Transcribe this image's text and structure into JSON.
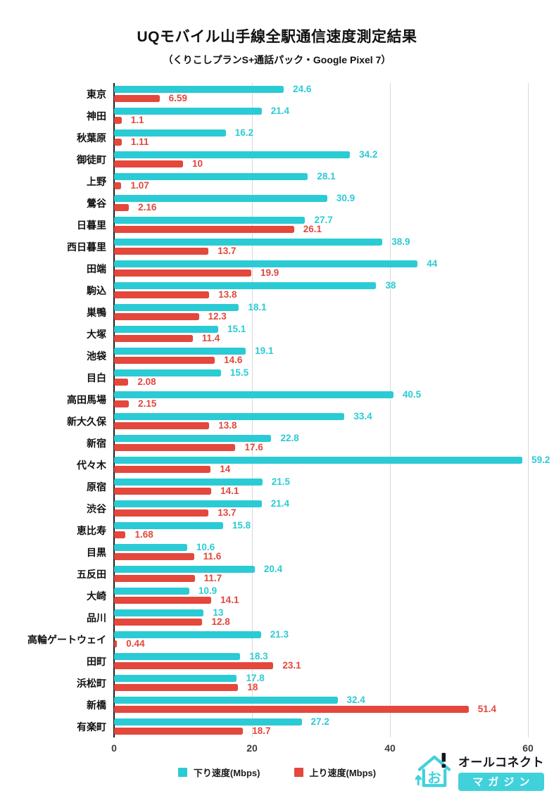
{
  "header": {
    "title": "UQモバイル山手線全駅通信速度測定結果",
    "subtitle": "（くりこしプランS+通話パック・Google Pixel 7）"
  },
  "chart_data": {
    "type": "bar",
    "orientation": "horizontal",
    "title": "UQモバイル山手線全駅通信速度測定結果",
    "subtitle": "（くりこしプランS+通話パック・Google Pixel 7）",
    "xlabel": "",
    "ylabel": "",
    "xlim": [
      0,
      60
    ],
    "xticks": [
      0,
      20,
      40,
      60
    ],
    "grid": "vertical-gridlines",
    "legend_position": "bottom",
    "categories": [
      "東京",
      "神田",
      "秋葉原",
      "御徒町",
      "上野",
      "鶯谷",
      "日暮里",
      "西日暮里",
      "田端",
      "駒込",
      "巣鴨",
      "大塚",
      "池袋",
      "目白",
      "高田馬場",
      "新大久保",
      "新宿",
      "代々木",
      "原宿",
      "渋谷",
      "恵比寿",
      "目黒",
      "五反田",
      "大崎",
      "品川",
      "高輪ゲートウェイ",
      "田町",
      "浜松町",
      "新橋",
      "有楽町"
    ],
    "series": [
      {
        "key": "download",
        "name": "下り速度(Mbps)",
        "color": "#2bcbd5",
        "values": [
          24.6,
          21.4,
          16.2,
          34.2,
          28.1,
          30.9,
          27.7,
          38.9,
          44,
          38,
          18.1,
          15.1,
          19.1,
          15.5,
          40.5,
          33.4,
          22.8,
          59.2,
          21.5,
          21.4,
          15.8,
          10.6,
          20.4,
          10.9,
          13,
          21.3,
          18.3,
          17.8,
          32.4,
          27.2
        ]
      },
      {
        "key": "upload",
        "name": "上り速度(Mbps)",
        "color": "#e4473c",
        "values": [
          6.59,
          1.1,
          1.11,
          10,
          1.07,
          2.16,
          26.1,
          13.7,
          19.9,
          13.8,
          12.3,
          11.4,
          14.6,
          2.08,
          2.15,
          13.8,
          17.6,
          14,
          14.1,
          13.7,
          1.68,
          11.6,
          11.7,
          14.1,
          12.8,
          0.44,
          23.1,
          18,
          51.4,
          18.7
        ]
      }
    ]
  },
  "colors": {
    "download": "#2bcbd5",
    "upload": "#e4473c",
    "gridline": "#d9d9d9",
    "axis_line": "#1c1c1c",
    "logo_accent": "#41d1db"
  },
  "logo": {
    "name": "オールコネクト",
    "badge": "マガジン"
  }
}
